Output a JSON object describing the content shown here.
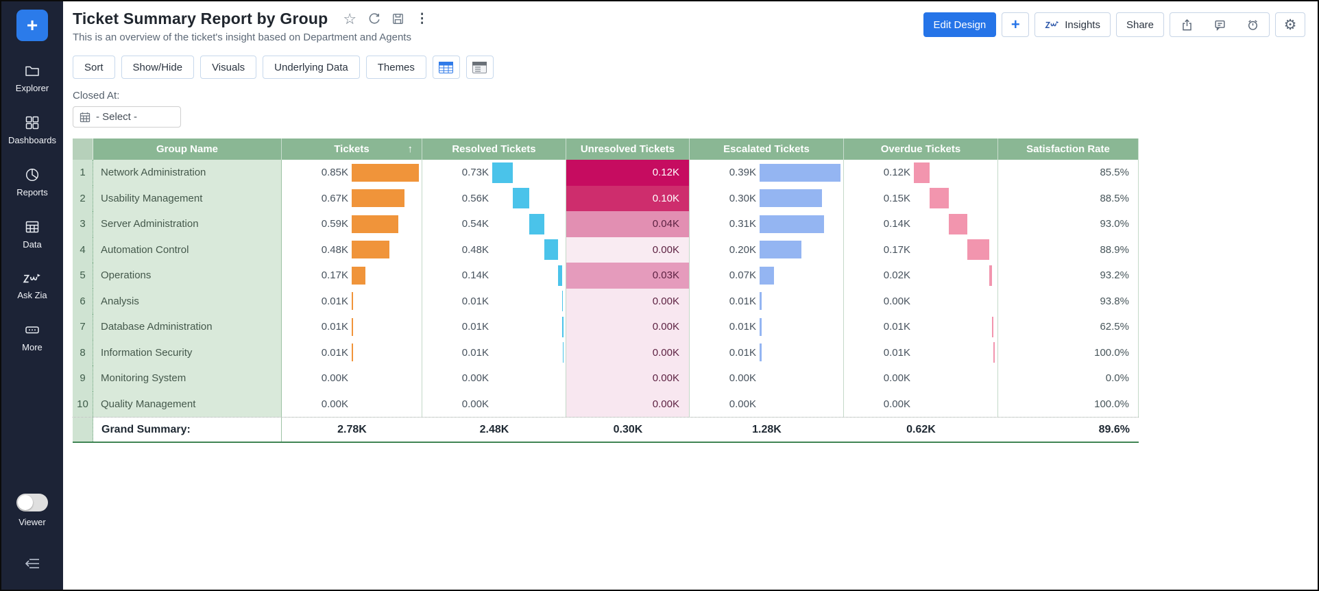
{
  "header": {
    "title": "Ticket Summary Report by Group",
    "subtitle": "This is an overview of the ticket's insight based on Department and Agents"
  },
  "sidebar": {
    "plus_label": "+",
    "items": [
      {
        "label": "Explorer",
        "icon": "folder-icon"
      },
      {
        "label": "Dashboards",
        "icon": "dashboards-icon"
      },
      {
        "label": "Reports",
        "icon": "reports-icon"
      },
      {
        "label": "Data",
        "icon": "data-icon"
      },
      {
        "label": "Ask Zia",
        "icon": "zia-icon"
      },
      {
        "label": "More",
        "icon": "more-icon"
      }
    ],
    "viewer_label": "Viewer"
  },
  "actions": {
    "edit_design": "Edit Design",
    "add": "+",
    "insights": "Insights",
    "share": "Share"
  },
  "toolbar": {
    "buttons": [
      "Sort",
      "Show/Hide",
      "Visuals",
      "Underlying Data",
      "Themes"
    ]
  },
  "filter": {
    "label": "Closed At:",
    "value": "- Select -"
  },
  "table": {
    "columns": [
      "Group Name",
      "Tickets",
      "Resolved Tickets",
      "Unresolved Tickets",
      "Escalated Tickets",
      "Overdue Tickets",
      "Satisfaction Rate"
    ],
    "sort_column": "Tickets",
    "sort_direction": "ascending-arrow",
    "rows": [
      {
        "rank": "1",
        "group": "Network Administration",
        "tickets": "0.85K",
        "resolved": "0.73K",
        "unresolved": "0.12K",
        "escalated": "0.39K",
        "overdue": "0.12K",
        "satisfaction": "85.5%"
      },
      {
        "rank": "2",
        "group": "Usability Management",
        "tickets": "0.67K",
        "resolved": "0.56K",
        "unresolved": "0.10K",
        "escalated": "0.30K",
        "overdue": "0.15K",
        "satisfaction": "88.5%"
      },
      {
        "rank": "3",
        "group": "Server Administration",
        "tickets": "0.59K",
        "resolved": "0.54K",
        "unresolved": "0.04K",
        "escalated": "0.31K",
        "overdue": "0.14K",
        "satisfaction": "93.0%"
      },
      {
        "rank": "4",
        "group": "Automation Control",
        "tickets": "0.48K",
        "resolved": "0.48K",
        "unresolved": "0.00K",
        "escalated": "0.20K",
        "overdue": "0.17K",
        "satisfaction": "88.9%"
      },
      {
        "rank": "5",
        "group": "Operations",
        "tickets": "0.17K",
        "resolved": "0.14K",
        "unresolved": "0.03K",
        "escalated": "0.07K",
        "overdue": "0.02K",
        "satisfaction": "93.2%"
      },
      {
        "rank": "6",
        "group": "Analysis",
        "tickets": "0.01K",
        "resolved": "0.01K",
        "unresolved": "0.00K",
        "escalated": "0.01K",
        "overdue": "0.00K",
        "satisfaction": "93.8%"
      },
      {
        "rank": "7",
        "group": "Database Administration",
        "tickets": "0.01K",
        "resolved": "0.01K",
        "unresolved": "0.00K",
        "escalated": "0.01K",
        "overdue": "0.01K",
        "satisfaction": "62.5%"
      },
      {
        "rank": "8",
        "group": "Information Security",
        "tickets": "0.01K",
        "resolved": "0.01K",
        "unresolved": "0.00K",
        "escalated": "0.01K",
        "overdue": "0.01K",
        "satisfaction": "100.0%"
      },
      {
        "rank": "9",
        "group": "Monitoring System",
        "tickets": "0.00K",
        "resolved": "0.00K",
        "unresolved": "0.00K",
        "escalated": "0.00K",
        "overdue": "0.00K",
        "satisfaction": "0.0%"
      },
      {
        "rank": "10",
        "group": "Quality Management",
        "tickets": "0.00K",
        "resolved": "0.00K",
        "unresolved": "0.00K",
        "escalated": "0.00K",
        "overdue": "0.00K",
        "satisfaction": "100.0%"
      }
    ],
    "grand_summary": {
      "label": "Grand Summary:",
      "tickets": "2.78K",
      "resolved": "2.48K",
      "unresolved": "0.30K",
      "escalated": "1.28K",
      "overdue": "0.62K",
      "satisfaction": "89.6%"
    },
    "bar_scales": {
      "tickets_max": 0.85,
      "resolved_total": 2.48,
      "escalated_max": 0.39,
      "overdue_total": 0.62
    },
    "heat_colors": [
      "#c60c60",
      "#ce2d6d",
      "#e28fb2",
      "#f9ebf2",
      "#e59bbc",
      "#f8e7f0",
      "#f8e7f0",
      "#f8e7f0",
      "#f8e7f0",
      "#f8e7f0"
    ],
    "heat_text_colors": [
      "#ffffff",
      "#ffffff",
      "#5d2242",
      "#5d2242",
      "#5d2242",
      "#5d2242",
      "#5d2242",
      "#5d2242",
      "#5d2242",
      "#5d2242"
    ]
  },
  "colors": {
    "accent_blue": "#2574e8",
    "sidebar_bg": "#1c2336",
    "header_green": "#8ab794",
    "bar_orange": "#f0943a",
    "bar_cyan": "#4ac3ea",
    "bar_periwinkle": "#94b5f2",
    "bar_pink": "#f295ae"
  }
}
